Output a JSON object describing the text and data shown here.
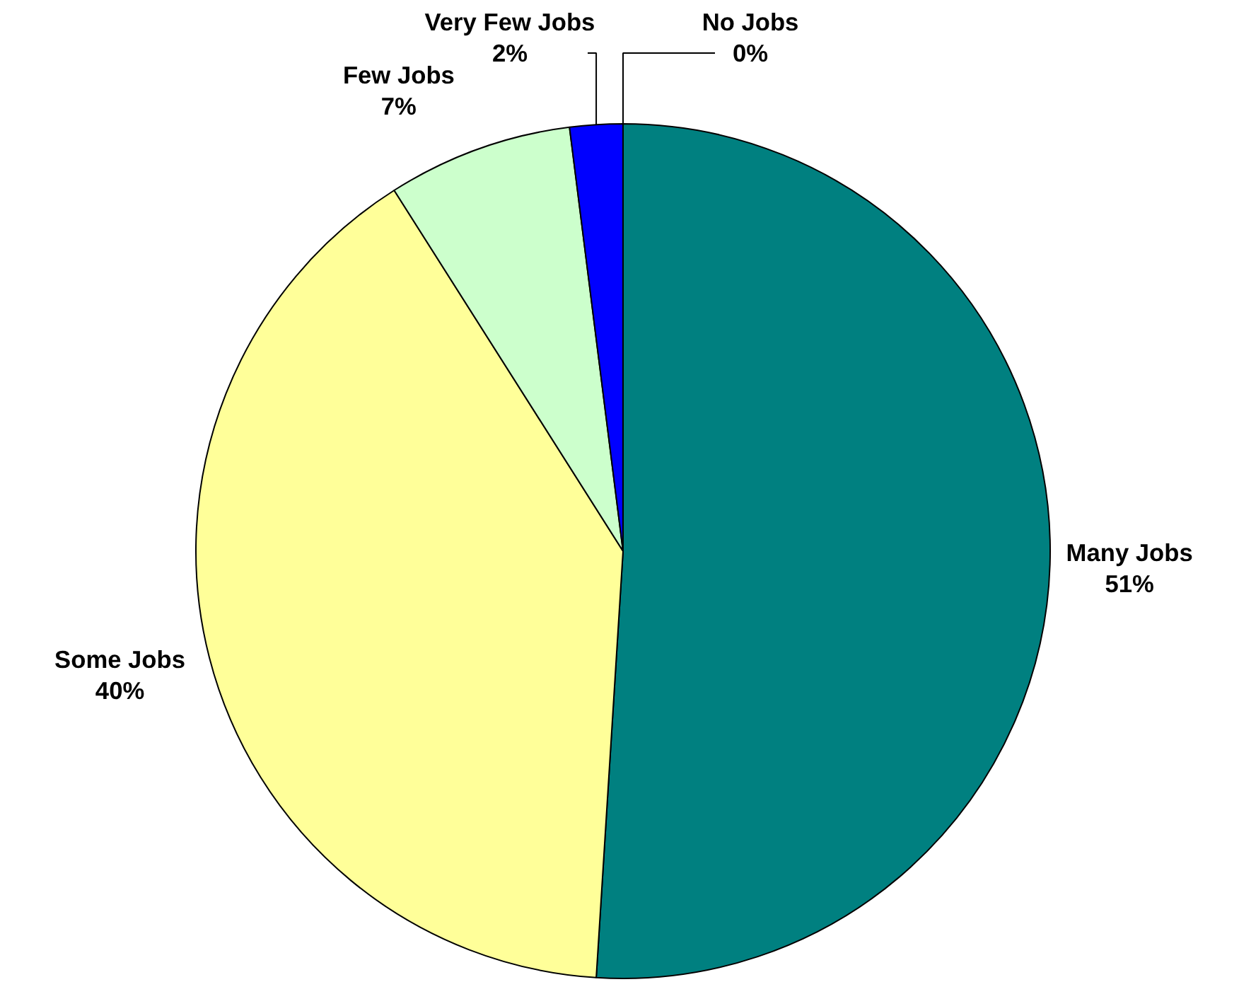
{
  "chart_data": {
    "type": "pie",
    "categories": [
      "Many Jobs",
      "Some Jobs",
      "Few Jobs",
      "Very Few Jobs",
      "No Jobs"
    ],
    "values": [
      51,
      40,
      7,
      2,
      0
    ],
    "value_labels": [
      "51%",
      "40%",
      "7%",
      "2%",
      "0%"
    ],
    "colors": [
      "#008080",
      "#ffff99",
      "#ccffcc",
      "#0000ff",
      "#ffffcc"
    ]
  }
}
